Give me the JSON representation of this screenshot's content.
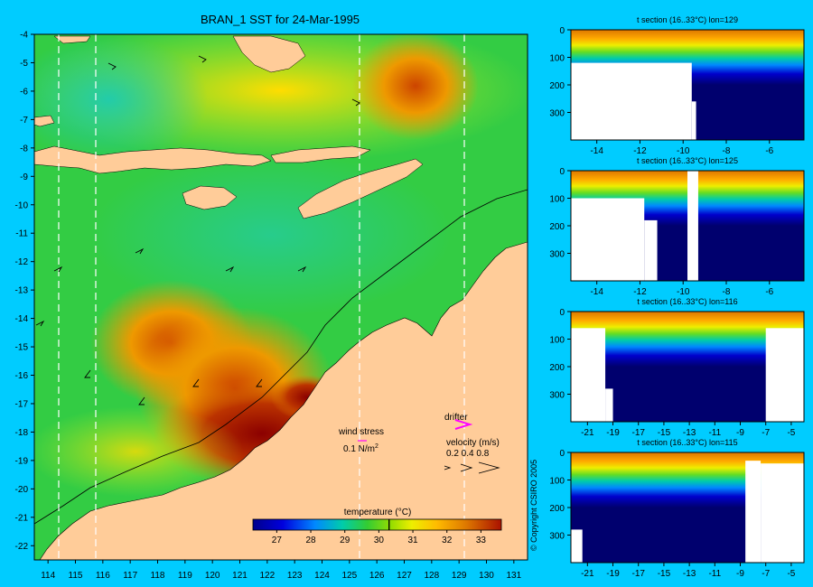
{
  "title": "BRAN_1 SST for 24-Mar-1995",
  "copyright": "© Copyright CSIRO 2005",
  "map": {
    "type": "heatmap",
    "lon_range": [
      113.5,
      131.5
    ],
    "lat_range": [
      -22.5,
      -4
    ],
    "lon_ticks": [
      114,
      115,
      116,
      117,
      118,
      119,
      120,
      121,
      122,
      123,
      124,
      125,
      126,
      127,
      128,
      129,
      130,
      131
    ],
    "lat_ticks": [
      -4,
      -5,
      -6,
      -7,
      -8,
      -9,
      -10,
      -11,
      -12,
      -13,
      -14,
      -15,
      -16,
      -17,
      -18,
      -19,
      -20,
      -21,
      -22
    ],
    "section_lons": [
      114.6,
      115.8,
      125.4,
      129.2
    ],
    "colors": {
      "land": "#ffcc99",
      "background": "#00ccff"
    }
  },
  "legend": {
    "wind_label": "wind stress",
    "wind_value": "0.1 N/m",
    "wind_exp": "2",
    "drifter_label": "drifter",
    "velocity_label": "velocity (m/s)",
    "velocity_values": "0.2 0.4 0.8"
  },
  "colorbar": {
    "title": "temperature (°C)",
    "ticks": [
      27,
      28,
      29,
      30,
      31,
      32,
      33
    ],
    "range": [
      26.3,
      33.6
    ],
    "contour": 30.3
  },
  "chart_data": [
    {
      "type": "heatmap",
      "title": "t section (16..33°C) lon=129",
      "x_ticks": [
        -14,
        -12,
        -10,
        -8,
        -6
      ],
      "y_ticks": [
        0,
        100,
        200,
        300
      ],
      "xlim": [
        -15.2,
        -4.4
      ],
      "ylim": [
        0,
        400
      ],
      "mask": [
        [
          -15.2,
          -9.6,
          120,
          400
        ],
        [
          -9.6,
          -9.4,
          260,
          400
        ]
      ]
    },
    {
      "type": "heatmap",
      "title": "t section (16..33°C) lon=125",
      "x_ticks": [
        -14,
        -12,
        -10,
        -8,
        -6
      ],
      "y_ticks": [
        0,
        100,
        200,
        300
      ],
      "xlim": [
        -15.2,
        -4.4
      ],
      "ylim": [
        0,
        400
      ],
      "mask": [
        [
          -15.2,
          -11.8,
          100,
          400
        ],
        [
          -11.8,
          -11.2,
          180,
          400
        ],
        [
          -9.8,
          -9.3,
          0,
          400
        ]
      ]
    },
    {
      "type": "heatmap",
      "title": "t section (16..33°C) lon=116",
      "x_ticks": [
        -21,
        -19,
        -17,
        -15,
        -13,
        -11,
        -9,
        -7,
        -5
      ],
      "y_ticks": [
        0,
        100,
        200,
        300
      ],
      "xlim": [
        -22.3,
        -4
      ],
      "ylim": [
        0,
        400
      ],
      "mask": [
        [
          -22.3,
          -19.6,
          60,
          400
        ],
        [
          -19.6,
          -19.0,
          280,
          400
        ],
        [
          -7.0,
          -4.0,
          60,
          400
        ]
      ]
    },
    {
      "type": "heatmap",
      "title": "t section (16..33°C) lon=115",
      "x_ticks": [
        -21,
        -19,
        -17,
        -15,
        -13,
        -11,
        -9,
        -7,
        -5
      ],
      "y_ticks": [
        0,
        100,
        200,
        300
      ],
      "xlim": [
        -22.3,
        -4
      ],
      "ylim": [
        0,
        400
      ],
      "mask": [
        [
          -22.3,
          -21.4,
          280,
          400
        ],
        [
          -8.6,
          -7.4,
          30,
          400
        ],
        [
          -7.4,
          -4.0,
          40,
          400
        ]
      ]
    }
  ]
}
